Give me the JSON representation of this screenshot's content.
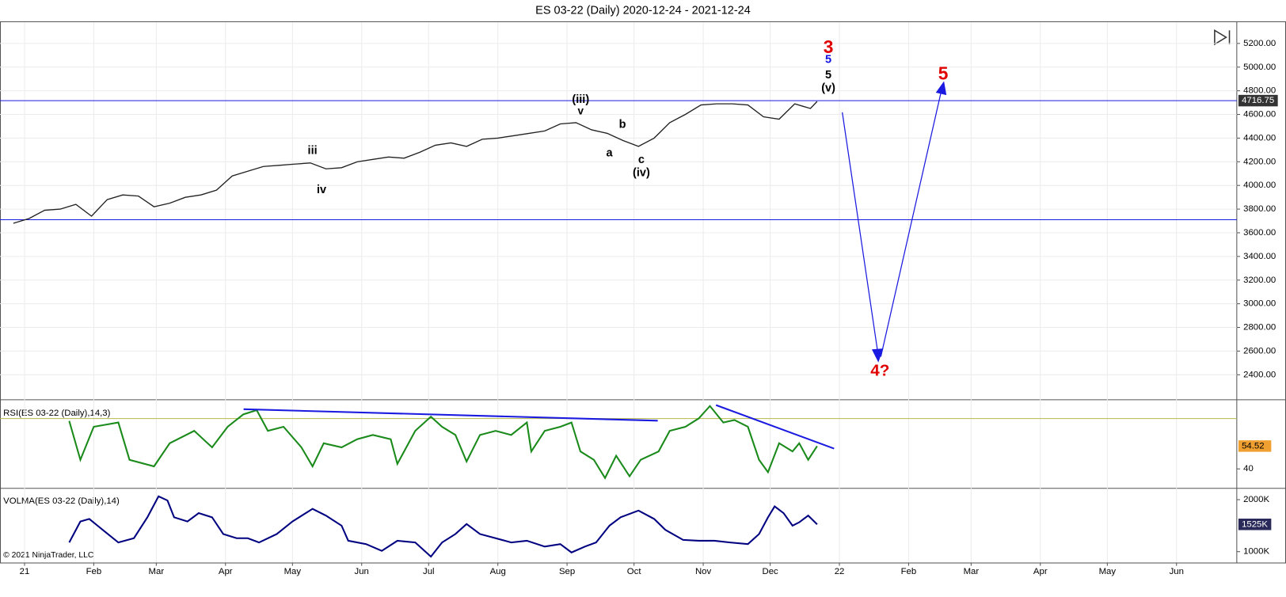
{
  "chart_data": [
    {
      "type": "line",
      "title": "ES 03-22 (Daily)  2020-12-24 - 2021-12-24",
      "footer": "© 2021 NinjaTrader, LLC",
      "xlim": [
        -11,
        543
      ],
      "xticks": [
        {
          "value": 0,
          "label": "21"
        },
        {
          "value": 31,
          "label": "Feb"
        },
        {
          "value": 59,
          "label": "Mar"
        },
        {
          "value": 90,
          "label": "Apr"
        },
        {
          "value": 120,
          "label": "May"
        },
        {
          "value": 151,
          "label": "Jun"
        },
        {
          "value": 181,
          "label": "Jul"
        },
        {
          "value": 212,
          "label": "Aug"
        },
        {
          "value": 243,
          "label": "Sep"
        },
        {
          "value": 273,
          "label": "Oct"
        },
        {
          "value": 304,
          "label": "Nov"
        },
        {
          "value": 334,
          "label": "Dec"
        },
        {
          "value": 365,
          "label": "22"
        },
        {
          "value": 396,
          "label": "Feb"
        },
        {
          "value": 424,
          "label": "Mar"
        },
        {
          "value": 455,
          "label": "Apr"
        },
        {
          "value": 485,
          "label": "May"
        },
        {
          "value": 516,
          "label": "Jun"
        }
      ],
      "ylim": [
        2192,
        5380
      ],
      "yticks": [
        {
          "value": 2400,
          "label": "2400.00"
        },
        {
          "value": 2600,
          "label": "2600.00"
        },
        {
          "value": 2800,
          "label": "2800.00"
        },
        {
          "value": 3000,
          "label": "3000.00"
        },
        {
          "value": 3200,
          "label": "3200.00"
        },
        {
          "value": 3400,
          "label": "3400.00"
        },
        {
          "value": 3600,
          "label": "3600.00"
        },
        {
          "value": 3800,
          "label": "3800.00"
        },
        {
          "value": 4000,
          "label": "4000.00"
        },
        {
          "value": 4200,
          "label": "4200.00"
        },
        {
          "value": 4400,
          "label": "4400.00"
        },
        {
          "value": 4600,
          "label": "4600.00"
        },
        {
          "value": 4800,
          "label": "4800.00"
        },
        {
          "value": 5000,
          "label": "5000.00"
        },
        {
          "value": 5200,
          "label": "5200.00"
        }
      ],
      "grid": true,
      "reference_lines": [
        {
          "value": 4716.75,
          "label": "4716.75"
        },
        {
          "value": 3710
        }
      ],
      "x": [
        -5,
        2,
        9,
        16,
        23,
        30,
        37,
        44,
        51,
        58,
        65,
        72,
        79,
        86,
        93,
        100,
        107,
        114,
        121,
        128,
        135,
        142,
        149,
        156,
        163,
        170,
        177,
        184,
        191,
        198,
        205,
        212,
        219,
        226,
        233,
        240,
        247,
        254,
        261,
        268,
        275,
        282,
        289,
        296,
        303,
        310,
        317,
        324,
        331,
        338,
        345,
        352,
        355
      ],
      "series": [
        {
          "color": "#222222",
          "values": [
            3680,
            3720,
            3790,
            3800,
            3840,
            3740,
            3880,
            3920,
            3910,
            3820,
            3850,
            3900,
            3920,
            3960,
            4080,
            4120,
            4160,
            4170,
            4180,
            4190,
            4140,
            4150,
            4200,
            4220,
            4240,
            4230,
            4280,
            4340,
            4360,
            4330,
            4390,
            4400,
            4420,
            4440,
            4460,
            4520,
            4530,
            4470,
            4440,
            4380,
            4330,
            4400,
            4530,
            4600,
            4680,
            4690,
            4690,
            4680,
            4580,
            4560,
            4690,
            4650,
            4710
          ]
        }
      ],
      "annotations": [
        {
          "text": "3",
          "color": "#e00000"
        },
        {
          "text": "5",
          "color": "#1010e0"
        },
        {
          "text": "5",
          "color": "#000000"
        },
        {
          "text": "(v)",
          "color": "#000000"
        },
        {
          "text": "(iii)",
          "color": "#000000"
        },
        {
          "text": "v",
          "color": "#000000"
        },
        {
          "text": "iii",
          "color": "#000000"
        },
        {
          "text": "iv",
          "color": "#000000"
        },
        {
          "text": "b",
          "color": "#000000"
        },
        {
          "text": "a",
          "color": "#000000"
        },
        {
          "text": "c",
          "color": "#000000"
        },
        {
          "text": "(iv)",
          "color": "#000000"
        },
        {
          "text": "5",
          "color": "#e00000"
        },
        {
          "text": "4?",
          "color": "#e00000"
        }
      ]
    },
    {
      "type": "line",
      "title": "RSI(ES 03-22 (Daily),14,3)",
      "ylim": [
        27.9,
        83.7
      ],
      "yticks": [
        40
      ],
      "reference_lines": [
        {
          "value": 72
        }
      ],
      "x": [
        20,
        25,
        31,
        42,
        47,
        58,
        65,
        76,
        84,
        91,
        98,
        104,
        109,
        116,
        124,
        129,
        134,
        142,
        149,
        156,
        164,
        167,
        175,
        182,
        187,
        193,
        198,
        204,
        211,
        218,
        225,
        227,
        233,
        240,
        245,
        249,
        255,
        260,
        265,
        271,
        276,
        284,
        289,
        296,
        302,
        307,
        313,
        318,
        324,
        329,
        333,
        338,
        344,
        347,
        351,
        355
      ],
      "series": [
        {
          "color": "#1a8a1a",
          "values": [
            70.5,
            45.8,
            66.8,
            69.5,
            45.8,
            41.6,
            56.3,
            64.2,
            53.7,
            66.8,
            74.7,
            77.4,
            64.2,
            66.8,
            53.7,
            41.6,
            56.3,
            53.7,
            58.9,
            61.6,
            58.9,
            43.2,
            64.2,
            73.2,
            66.8,
            61.6,
            44.7,
            61.6,
            64.2,
            61.6,
            69.5,
            51.1,
            64.2,
            66.8,
            69.5,
            51.1,
            45.8,
            34.2,
            48.4,
            35.3,
            45.8,
            51.1,
            64.2,
            66.8,
            72.1,
            80.0,
            69.5,
            71.1,
            66.8,
            45.8,
            37.9,
            56.3,
            51.1,
            56.3,
            45.8,
            54.52
          ]
        }
      ]
    },
    {
      "type": "line",
      "title": "VOLMA(ES 03-22 (Daily),14)",
      "ylim": [
        790,
        2210
      ],
      "yticks": [
        {
          "value": 1000,
          "label": "1000K"
        },
        {
          "value": 2000,
          "label": "2000K"
        }
      ],
      "x": [
        20,
        25,
        29,
        35,
        42,
        49,
        55,
        60,
        64,
        67,
        73,
        78,
        84,
        89,
        95,
        100,
        105,
        113,
        120,
        129,
        135,
        142,
        145,
        153,
        160,
        167,
        175,
        182,
        187,
        193,
        198,
        204,
        211,
        218,
        225,
        233,
        240,
        245,
        251,
        256,
        262,
        267,
        275,
        282,
        287,
        295,
        302,
        309,
        316,
        324,
        329,
        333,
        336,
        340,
        344,
        347,
        351,
        355
      ],
      "series": [
        {
          "color": "#000080",
          "last_value_label": "1525K",
          "values": [
            1177,
            1581,
            1629,
            1419,
            1177,
            1258,
            1661,
            2065,
            1984,
            1661,
            1581,
            1742,
            1661,
            1339,
            1258,
            1258,
            1177,
            1339,
            1581,
            1823,
            1694,
            1500,
            1210,
            1145,
            1016,
            1210,
            1177,
            903,
            1177,
            1339,
            1532,
            1339,
            1258,
            1177,
            1210,
            1097,
            1145,
            984,
            1097,
            1177,
            1500,
            1661,
            1790,
            1629,
            1419,
            1226,
            1210,
            1210,
            1177,
            1145,
            1339,
            1661,
            1871,
            1742,
            1500,
            1565,
            1694,
            1525
          ]
        }
      ]
    }
  ]
}
